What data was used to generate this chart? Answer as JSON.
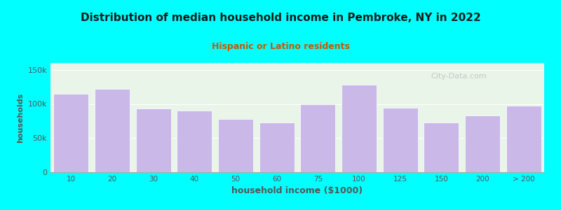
{
  "title": "Distribution of median household income in Pembroke, NY in 2022",
  "subtitle": "Hispanic or Latino residents",
  "xlabel": "household income ($1000)",
  "ylabel": "households",
  "categories": [
    "10",
    "20",
    "30",
    "40",
    "50",
    "60",
    "75",
    "100",
    "125",
    "150",
    "200",
    "> 200"
  ],
  "values": [
    115000,
    122000,
    93000,
    90000,
    78000,
    73000,
    100000,
    128000,
    94000,
    73000,
    83000,
    97000
  ],
  "bar_color": "#c9b8e8",
  "background_color": "#00ffff",
  "plot_bg_top_color": "#e8f5e8",
  "plot_bg_bottom_color": "#f0f0f8",
  "title_color": "#1a1a1a",
  "subtitle_color": "#cc5500",
  "axis_color": "#555555",
  "watermark_text": "City-Data.com",
  "ylim": [
    0,
    160000
  ],
  "yticks": [
    0,
    50000,
    100000,
    150000
  ]
}
